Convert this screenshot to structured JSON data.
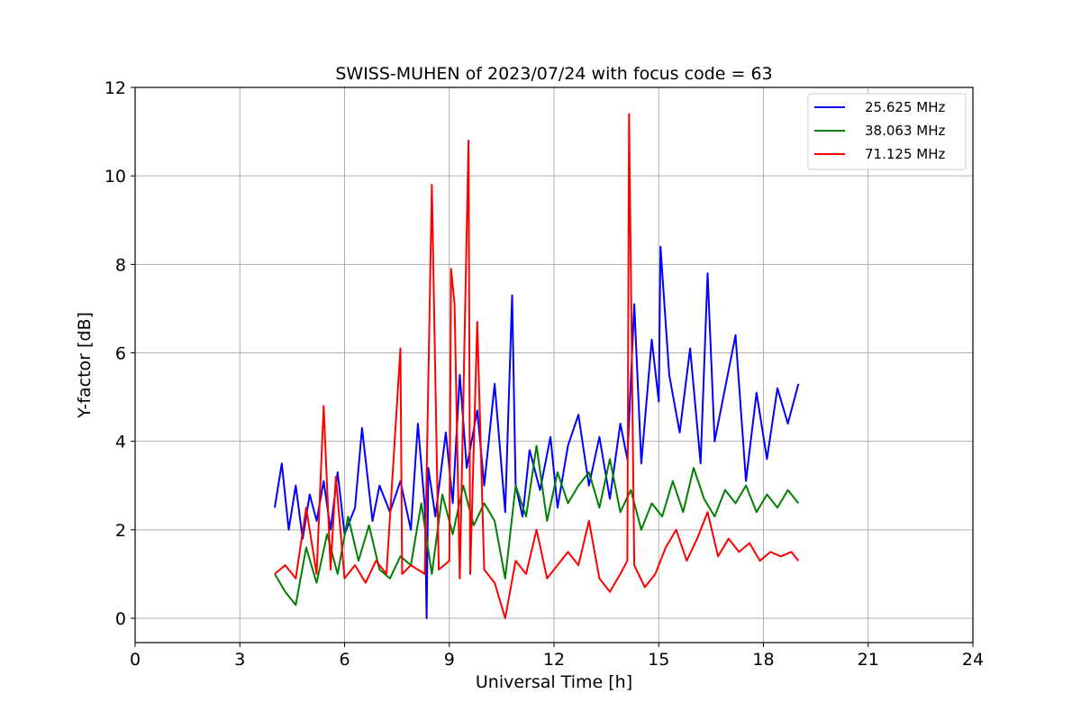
{
  "chart_data": {
    "type": "line",
    "title": "SWISS-MUHEN of 2023/07/24 with focus code = 63",
    "xlabel": "Universal Time [h]",
    "ylabel": "Y-factor [dB]",
    "xlim": [
      0,
      24
    ],
    "ylim": [
      -0.55,
      12
    ],
    "xticks": [
      0,
      3,
      6,
      9,
      12,
      15,
      18,
      21,
      24
    ],
    "yticks": [
      0,
      2,
      4,
      6,
      8,
      10,
      12
    ],
    "grid": true,
    "legend_position": "top-right",
    "series": [
      {
        "name": "25.625 MHz",
        "color": "#0000ff",
        "x": [
          4.0,
          4.2,
          4.4,
          4.6,
          4.8,
          5.0,
          5.2,
          5.4,
          5.6,
          5.8,
          6.0,
          6.3,
          6.5,
          6.8,
          7.0,
          7.3,
          7.6,
          7.9,
          8.1,
          8.3,
          8.35,
          8.4,
          8.6,
          8.9,
          9.1,
          9.3,
          9.5,
          9.8,
          10.0,
          10.3,
          10.6,
          10.8,
          10.9,
          11.1,
          11.3,
          11.6,
          11.9,
          12.1,
          12.4,
          12.7,
          13.0,
          13.3,
          13.6,
          13.9,
          14.1,
          14.3,
          14.5,
          14.8,
          15.0,
          15.05,
          15.3,
          15.6,
          15.9,
          16.2,
          16.4,
          16.6,
          16.9,
          17.2,
          17.5,
          17.8,
          18.1,
          18.4,
          18.7,
          19.0
        ],
        "y": [
          2.5,
          3.5,
          2.0,
          3.0,
          1.8,
          2.8,
          2.2,
          3.1,
          2.0,
          3.3,
          1.9,
          2.5,
          4.3,
          2.2,
          3.0,
          2.4,
          3.1,
          2.0,
          4.4,
          2.5,
          0.0,
          3.4,
          2.3,
          4.2,
          2.6,
          5.5,
          3.4,
          4.7,
          3.0,
          5.3,
          2.4,
          7.3,
          3.0,
          2.3,
          3.8,
          2.9,
          4.1,
          2.5,
          3.9,
          4.6,
          3.0,
          4.1,
          2.7,
          4.4,
          3.6,
          7.1,
          3.5,
          6.3,
          4.9,
          8.4,
          5.5,
          4.2,
          6.1,
          3.5,
          7.8,
          4.0,
          5.2,
          6.4,
          3.1,
          5.1,
          3.6,
          5.2,
          4.4,
          5.3
        ]
      },
      {
        "name": "38.063 MHz",
        "color": "#008000",
        "x": [
          4.0,
          4.3,
          4.6,
          4.9,
          5.2,
          5.5,
          5.8,
          6.1,
          6.4,
          6.7,
          7.0,
          7.3,
          7.6,
          7.9,
          8.2,
          8.5,
          8.8,
          9.1,
          9.4,
          9.7,
          10.0,
          10.3,
          10.6,
          10.9,
          11.2,
          11.5,
          11.8,
          12.1,
          12.4,
          12.7,
          13.0,
          13.3,
          13.6,
          13.9,
          14.2,
          14.5,
          14.8,
          15.1,
          15.4,
          15.7,
          16.0,
          16.3,
          16.6,
          16.9,
          17.2,
          17.5,
          17.8,
          18.1,
          18.4,
          18.7,
          19.0
        ],
        "y": [
          1.0,
          0.6,
          0.3,
          1.6,
          0.8,
          1.9,
          1.0,
          2.3,
          1.3,
          2.1,
          1.1,
          0.9,
          1.4,
          1.2,
          2.6,
          1.0,
          2.8,
          1.9,
          3.0,
          2.1,
          2.6,
          2.2,
          0.9,
          3.0,
          2.3,
          3.9,
          2.2,
          3.3,
          2.6,
          3.0,
          3.3,
          2.5,
          3.6,
          2.4,
          2.9,
          2.0,
          2.6,
          2.3,
          3.1,
          2.4,
          3.4,
          2.7,
          2.3,
          2.9,
          2.6,
          3.0,
          2.4,
          2.8,
          2.5,
          2.9,
          2.6
        ]
      },
      {
        "name": "71.125 MHz",
        "color": "#ff0000",
        "x": [
          4.0,
          4.3,
          4.6,
          4.9,
          5.2,
          5.4,
          5.6,
          5.75,
          6.0,
          6.3,
          6.6,
          6.9,
          7.2,
          7.6,
          7.65,
          7.9,
          8.3,
          8.5,
          8.7,
          9.0,
          9.05,
          9.15,
          9.3,
          9.55,
          9.6,
          9.8,
          10.0,
          10.3,
          10.6,
          10.9,
          11.2,
          11.5,
          11.8,
          12.1,
          12.4,
          12.7,
          13.0,
          13.3,
          13.6,
          13.9,
          14.1,
          14.15,
          14.3,
          14.6,
          14.9,
          15.2,
          15.5,
          15.8,
          16.1,
          16.4,
          16.7,
          17.0,
          17.3,
          17.6,
          17.9,
          18.2,
          18.5,
          18.8,
          19.0
        ],
        "y": [
          1.0,
          1.2,
          0.9,
          2.5,
          1.0,
          4.8,
          1.1,
          3.2,
          0.9,
          1.2,
          0.8,
          1.3,
          1.0,
          6.1,
          1.0,
          1.2,
          1.0,
          9.8,
          1.1,
          1.3,
          7.9,
          7.1,
          0.9,
          10.8,
          1.0,
          6.7,
          1.1,
          0.8,
          0.0,
          1.3,
          1.0,
          2.0,
          0.9,
          1.2,
          1.5,
          1.2,
          2.2,
          0.9,
          0.6,
          1.0,
          1.3,
          11.4,
          1.2,
          0.7,
          1.0,
          1.6,
          2.0,
          1.3,
          1.8,
          2.4,
          1.4,
          1.8,
          1.5,
          1.7,
          1.3,
          1.5,
          1.4,
          1.5,
          1.3
        ]
      }
    ]
  }
}
